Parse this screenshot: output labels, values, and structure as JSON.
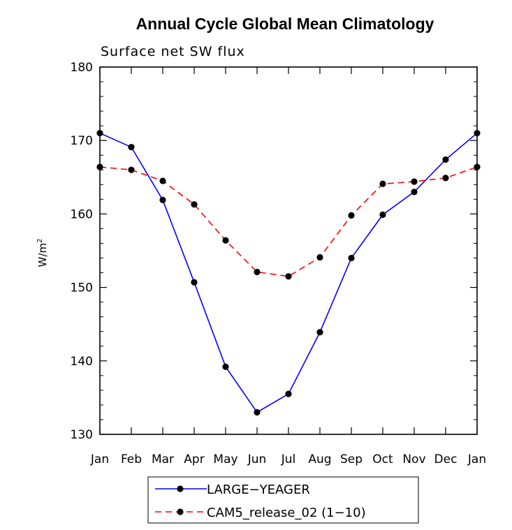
{
  "chart_data": {
    "type": "line",
    "title": "Annual Cycle Global Mean Climatology",
    "subtitle": "Surface net SW flux",
    "ylabel": "W/m",
    "ylabel_superscript": "2",
    "categories": [
      "Jan",
      "Feb",
      "Mar",
      "Apr",
      "May",
      "Jun",
      "Jul",
      "Aug",
      "Sep",
      "Oct",
      "Nov",
      "Dec",
      "Jan"
    ],
    "ylim": [
      130,
      180
    ],
    "yticks": [
      130,
      140,
      150,
      160,
      170,
      180
    ],
    "grid": false,
    "legend_position": "bottom-center",
    "series": [
      {
        "name": "LARGE−YEAGER",
        "color": "#0000ff",
        "dash": "solid",
        "values": [
          171.0,
          169.1,
          161.9,
          150.7,
          139.2,
          133.0,
          135.5,
          143.9,
          154.0,
          159.9,
          163.0,
          167.4,
          171.0
        ]
      },
      {
        "name": "CAM5_release_02 (1−10)",
        "color": "#ff0000",
        "dash": "dashed",
        "values": [
          166.4,
          166.0,
          164.5,
          161.3,
          156.4,
          152.1,
          151.5,
          154.1,
          159.8,
          164.1,
          164.4,
          164.9,
          166.4
        ]
      }
    ]
  }
}
